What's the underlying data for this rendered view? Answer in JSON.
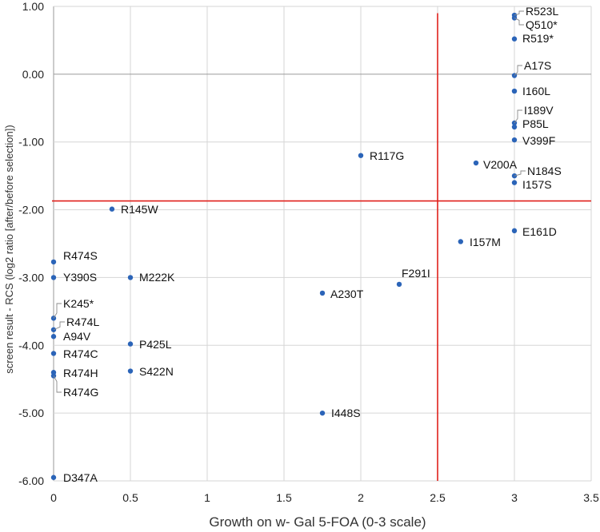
{
  "chart_data": {
    "type": "scatter",
    "title": "",
    "xlabel": "Growth on w- Gal 5-FOA (0-3 scale)",
    "ylabel": "screen result - RCS (log2 ratio [after/before selection])",
    "xlim": [
      0,
      3.5
    ],
    "ylim": [
      -6,
      1
    ],
    "xticks": [
      0,
      0.5,
      1,
      1.5,
      2,
      2.5,
      3,
      3.5
    ],
    "xtick_labels": [
      "0",
      "0.5",
      "1",
      "1.5",
      "2",
      "2.5",
      "3",
      "3.5"
    ],
    "yticks": [
      1,
      0,
      -1,
      -2,
      -3,
      -4,
      -5,
      -6
    ],
    "ytick_labels": [
      "1.00",
      "0.00",
      "-1.00",
      "-2.00",
      "-3.00",
      "-4.00",
      "-5.00",
      "-6.00"
    ],
    "grid": true,
    "threshold_lines": {
      "x": 2.5,
      "y": -1.87,
      "color": "#e0201b"
    },
    "point_color": "#2b64b8",
    "points": [
      {
        "label": "R523L",
        "x": 3.0,
        "y": 0.87
      },
      {
        "label": "Q510*",
        "x": 3.0,
        "y": 0.83
      },
      {
        "label": "R519*",
        "x": 3.0,
        "y": 0.52
      },
      {
        "label": "A17S",
        "x": 3.0,
        "y": -0.02
      },
      {
        "label": "I160L",
        "x": 3.0,
        "y": -0.25
      },
      {
        "label": "I189V",
        "x": 3.0,
        "y": -0.72
      },
      {
        "label": "P85L",
        "x": 3.0,
        "y": -0.78
      },
      {
        "label": "V399F",
        "x": 3.0,
        "y": -0.97
      },
      {
        "label": "N184S",
        "x": 3.0,
        "y": -1.5
      },
      {
        "label": "I157S",
        "x": 3.0,
        "y": -1.6
      },
      {
        "label": "V200A",
        "x": 2.75,
        "y": -1.31
      },
      {
        "label": "R117G",
        "x": 2.0,
        "y": -1.2
      },
      {
        "label": "R145W",
        "x": 0.38,
        "y": -1.99
      },
      {
        "label": "E161D",
        "x": 3.0,
        "y": -2.31
      },
      {
        "label": "I157M",
        "x": 2.65,
        "y": -2.47
      },
      {
        "label": "F291I",
        "x": 2.25,
        "y": -3.1
      },
      {
        "label": "A230T",
        "x": 1.75,
        "y": -3.23
      },
      {
        "label": "M222K",
        "x": 0.5,
        "y": -3.0
      },
      {
        "label": "P425L",
        "x": 0.5,
        "y": -3.98
      },
      {
        "label": "S422N",
        "x": 0.5,
        "y": -4.38
      },
      {
        "label": "I448S",
        "x": 1.75,
        "y": -5.0
      },
      {
        "label": "R474S",
        "x": 0.0,
        "y": -2.77
      },
      {
        "label": "Y390S",
        "x": 0.0,
        "y": -3.0
      },
      {
        "label": "K245*",
        "x": 0.0,
        "y": -3.6
      },
      {
        "label": "R474L",
        "x": 0.0,
        "y": -3.77
      },
      {
        "label": "A94V",
        "x": 0.0,
        "y": -3.87
      },
      {
        "label": "R474C",
        "x": 0.0,
        "y": -4.12
      },
      {
        "label": "R474H",
        "x": 0.0,
        "y": -4.4
      },
      {
        "label": "R474G",
        "x": 0.0,
        "y": -4.45
      },
      {
        "label": "D347A",
        "x": 0.0,
        "y": -5.95
      }
    ]
  }
}
